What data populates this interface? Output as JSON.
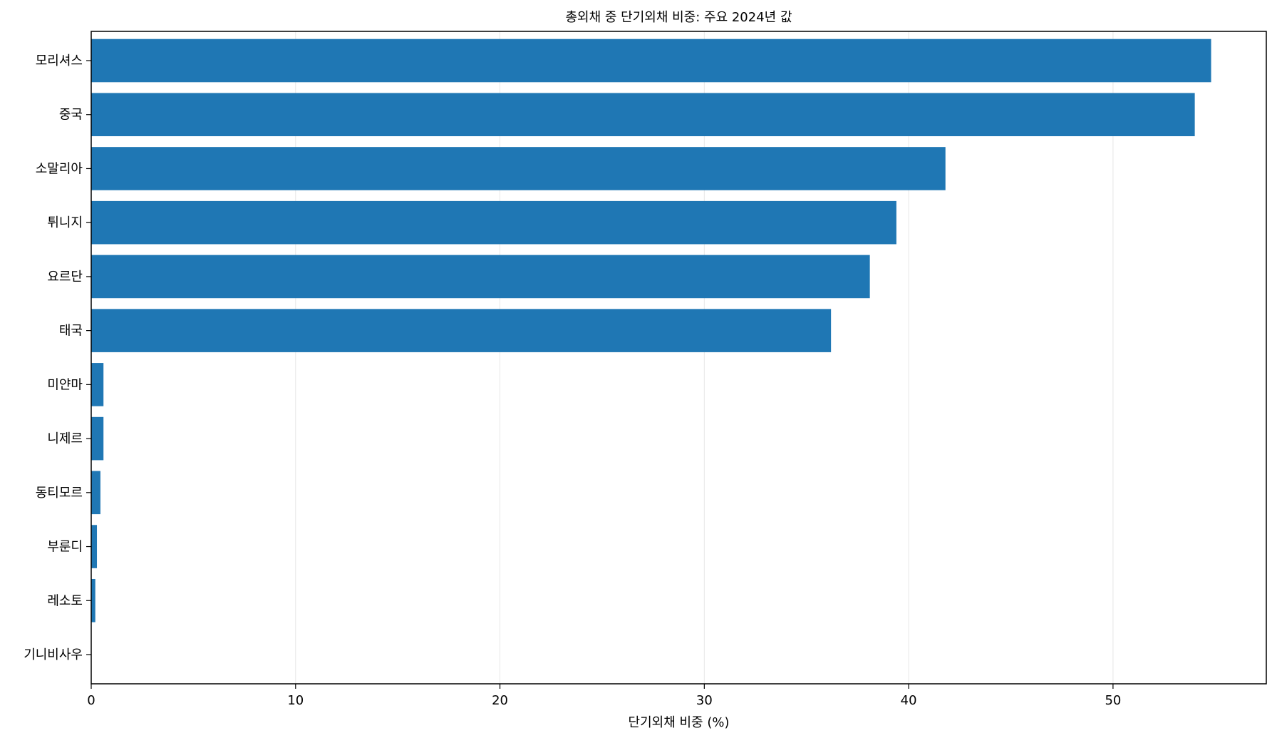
{
  "chart_data": {
    "type": "bar",
    "orientation": "horizontal",
    "title": "총외채 중 단기외채 비중: 주요 2024년 값",
    "xlabel": "단기외채 비중 (%)",
    "ylabel": "",
    "xlim": [
      0,
      57.5
    ],
    "xticks": [
      0,
      10,
      20,
      30,
      40,
      50
    ],
    "grid": "x",
    "bar_color": "#1f77b4",
    "categories": [
      "모리셔스",
      "중국",
      "소말리아",
      "튀니지",
      "요르단",
      "태국",
      "미얀마",
      "니제르",
      "동티모르",
      "부룬디",
      "레소토",
      "기니비사우"
    ],
    "values": [
      54.8,
      54.0,
      41.8,
      39.4,
      38.1,
      36.2,
      0.6,
      0.6,
      0.45,
      0.28,
      0.2,
      0.0
    ]
  }
}
